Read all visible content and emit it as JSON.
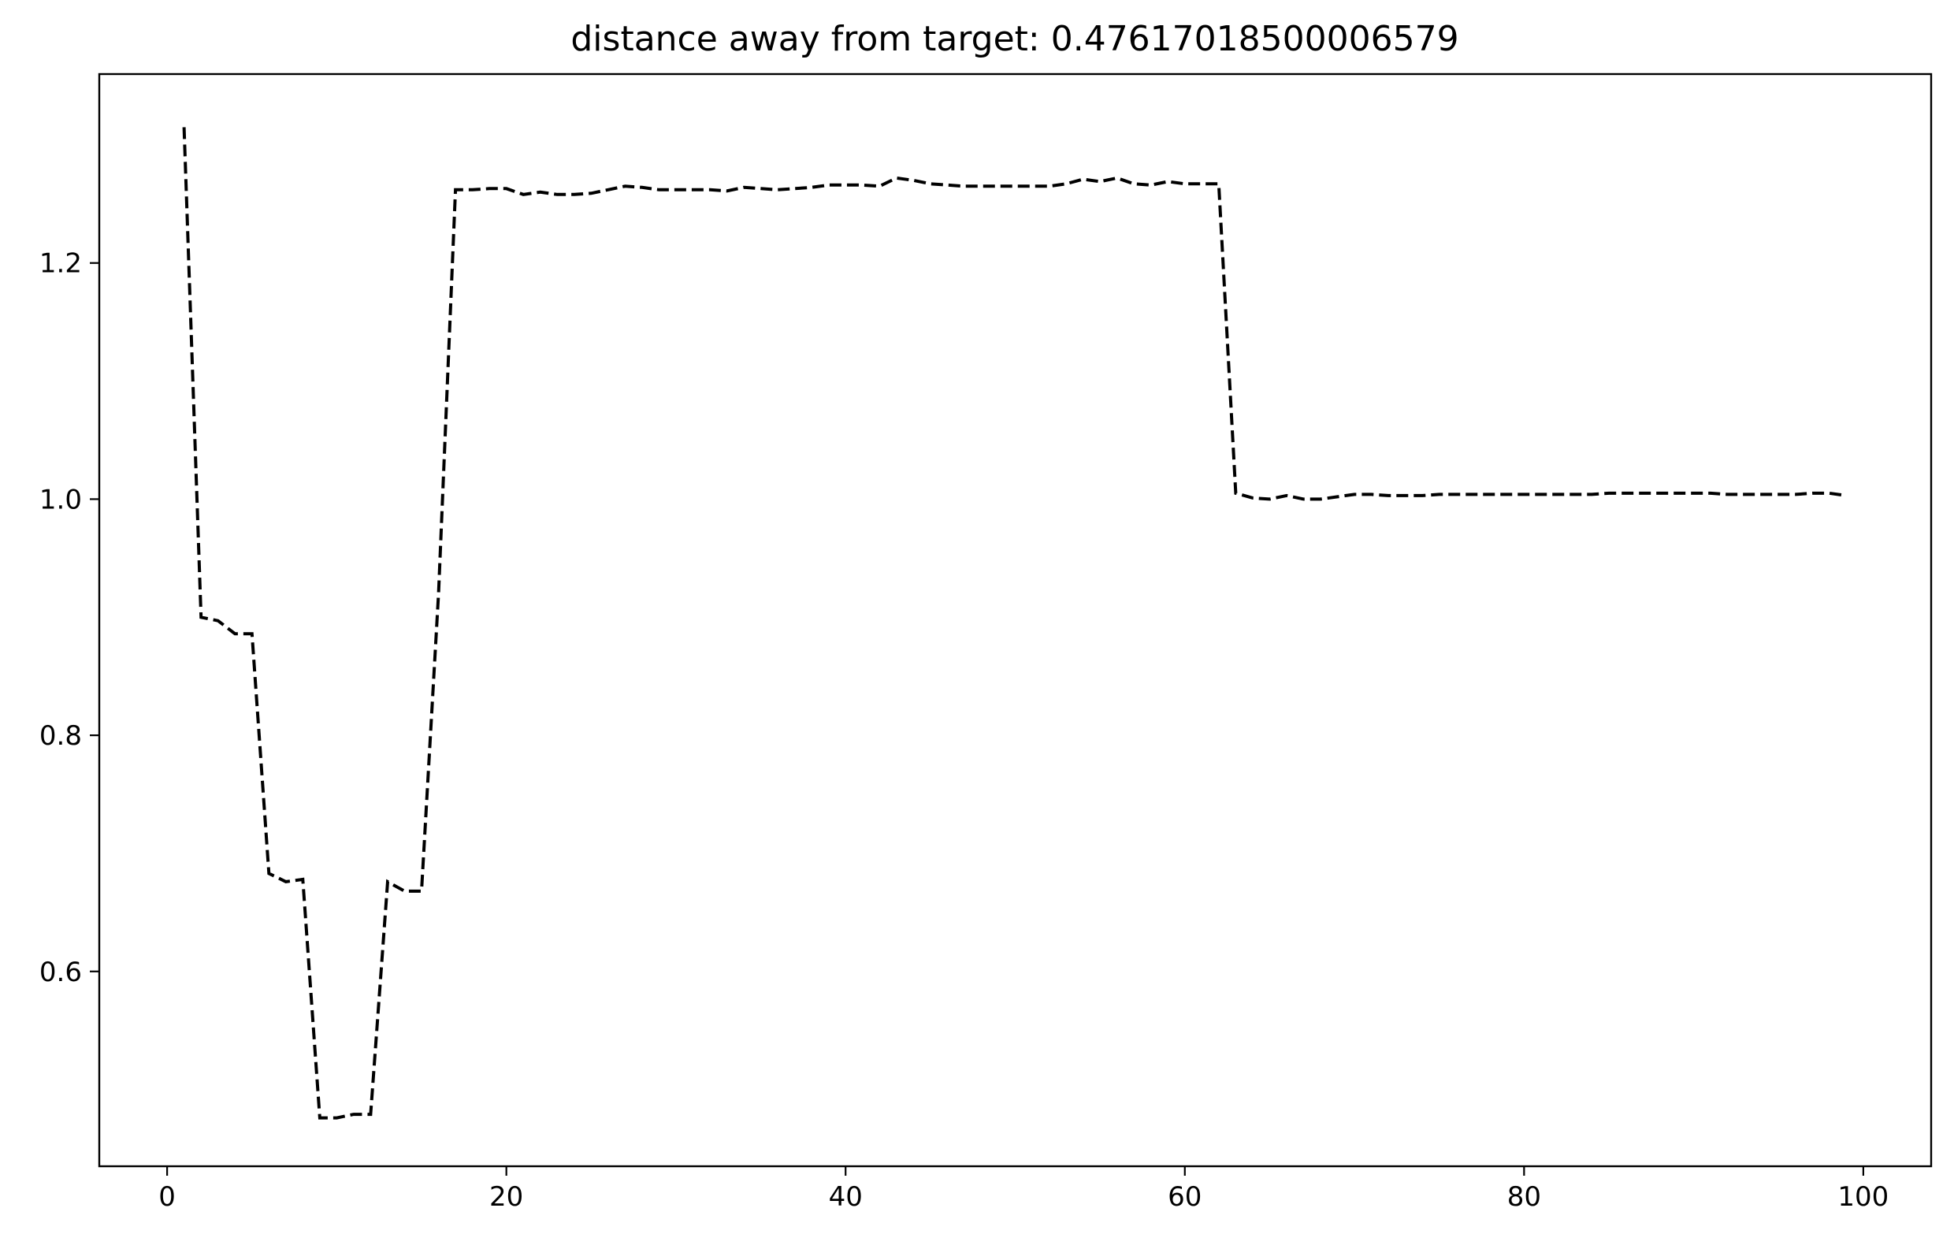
{
  "chart_data": {
    "type": "line",
    "title": "distance away from target: 0.47617018500006579",
    "xlabel": "",
    "ylabel": "",
    "xlim": [
      -4,
      104
    ],
    "ylim": [
      0.435,
      1.36
    ],
    "x_ticks": [
      0,
      20,
      40,
      60,
      80,
      100
    ],
    "x_tick_labels": [
      "0",
      "20",
      "40",
      "60",
      "80",
      "100"
    ],
    "y_ticks": [
      0.6,
      0.8,
      1.0,
      1.2
    ],
    "y_tick_labels": [
      "0.6",
      "0.8",
      "1.0",
      "1.2"
    ],
    "grid": false,
    "line_style": "dashed",
    "line_color": "#000000",
    "series": [
      {
        "x": [
          1,
          2,
          3,
          4,
          5,
          6,
          7,
          8,
          9,
          10,
          11,
          12,
          13,
          14,
          15,
          16,
          17,
          18,
          19,
          20,
          21,
          22,
          23,
          24,
          25,
          26,
          27,
          28,
          29,
          30,
          31,
          32,
          33,
          34,
          35,
          36,
          37,
          38,
          39,
          40,
          41,
          42,
          43,
          44,
          45,
          46,
          47,
          48,
          49,
          50,
          51,
          52,
          53,
          54,
          55,
          56,
          57,
          58,
          59,
          60,
          61,
          62,
          63,
          64,
          65,
          66,
          67,
          68,
          69,
          70,
          71,
          72,
          73,
          74,
          75,
          76,
          77,
          78,
          79,
          80,
          81,
          82,
          83,
          84,
          85,
          86,
          87,
          88,
          89,
          90,
          91,
          92,
          93,
          94,
          95,
          96,
          97,
          98,
          99
        ],
        "values": [
          1.315,
          0.9,
          0.897,
          0.886,
          0.886,
          0.683,
          0.676,
          0.678,
          0.476,
          0.476,
          0.479,
          0.479,
          0.676,
          0.668,
          0.668,
          0.92,
          1.262,
          1.262,
          1.263,
          1.263,
          1.258,
          1.26,
          1.258,
          1.258,
          1.259,
          1.262,
          1.265,
          1.264,
          1.262,
          1.262,
          1.262,
          1.262,
          1.261,
          1.264,
          1.263,
          1.262,
          1.263,
          1.264,
          1.266,
          1.266,
          1.266,
          1.265,
          1.272,
          1.27,
          1.267,
          1.266,
          1.265,
          1.265,
          1.265,
          1.265,
          1.265,
          1.265,
          1.267,
          1.271,
          1.269,
          1.272,
          1.267,
          1.266,
          1.269,
          1.267,
          1.267,
          1.267,
          1.005,
          1.001,
          1.0,
          1.003,
          1.0,
          1.0,
          1.002,
          1.004,
          1.004,
          1.003,
          1.003,
          1.003,
          1.004,
          1.004,
          1.004,
          1.004,
          1.004,
          1.004,
          1.004,
          1.004,
          1.004,
          1.004,
          1.005,
          1.005,
          1.005,
          1.005,
          1.005,
          1.005,
          1.005,
          1.004,
          1.004,
          1.004,
          1.004,
          1.004,
          1.005,
          1.005,
          1.003
        ]
      }
    ]
  }
}
